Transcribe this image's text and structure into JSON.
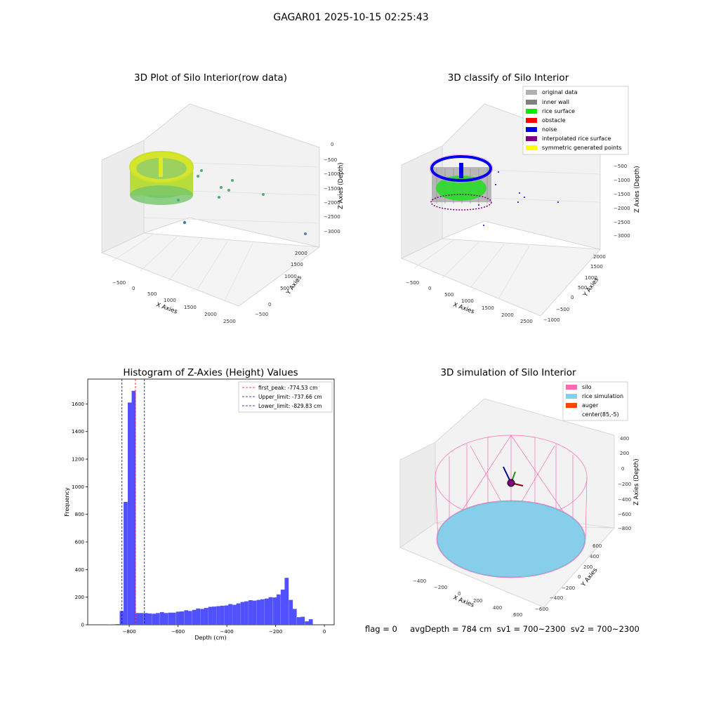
{
  "figure": {
    "suptitle": "GAGAR01 2025-10-15 02:25:43",
    "footer": "flag = 0     avgDepth = 784 cm  sv1 = 700~2300  sv2 = 700~2300"
  },
  "panels": {
    "raw": {
      "title": "3D Plot of Silo Interior(row data)",
      "xlabel": "X Axies",
      "ylabel": "Y Axies",
      "zlabel": "Z Axies (Depth)",
      "xticks": [
        "−500",
        "0",
        "500",
        "1000",
        "1500",
        "2000",
        "2500"
      ],
      "yticks": [
        "−500",
        "0",
        "500",
        "1000",
        "1500",
        "2000"
      ],
      "zticks": [
        "0",
        "−500",
        "−1000",
        "−1500",
        "−2000",
        "−2500",
        "−3000"
      ]
    },
    "classify": {
      "title": "3D classify of Silo Interior",
      "xlabel": "X Axies",
      "ylabel": "Y Axies",
      "zlabel": "Z Axies (Depth)",
      "xticks": [
        "−500",
        "0",
        "500",
        "1000",
        "1500",
        "2000",
        "2500"
      ],
      "yticks": [
        "−1000",
        "−500",
        "0",
        "500",
        "1000",
        "1500",
        "2000"
      ],
      "zticks": [
        "−500",
        "−1000",
        "−1500",
        "−2000",
        "−2500",
        "−3000"
      ],
      "legend": [
        {
          "label": "original data",
          "color": "#b0b0b0"
        },
        {
          "label": "inner wall",
          "color": "#808080"
        },
        {
          "label": "rice surface",
          "color": "#00ee00"
        },
        {
          "label": "obstacle",
          "color": "#ff0000"
        },
        {
          "label": "noise",
          "color": "#0000ee"
        },
        {
          "label": "interpolated rice surface",
          "color": "#800080"
        },
        {
          "label": "symmetric generated points",
          "color": "#ffff00"
        }
      ]
    },
    "simulation": {
      "title": "3D simulation of Silo Interior",
      "xlabel": "X Axies",
      "ylabel": "Y Axies",
      "zlabel": "Z Axies (Depth)",
      "xticks": [
        "−400",
        "−200",
        "0",
        "200",
        "400",
        "600"
      ],
      "yticks": [
        "−600",
        "−400",
        "−200",
        "0",
        "200",
        "400",
        "600"
      ],
      "zticks": [
        "400",
        "200",
        "0",
        "−200",
        "−400",
        "−600",
        "−800"
      ],
      "legend": [
        {
          "label": "silo",
          "color": "#ff69b4"
        },
        {
          "label": "rice simulation",
          "color": "#87ceeb"
        },
        {
          "label": "auger",
          "color": "#ff4500"
        },
        {
          "label": "center(85,-5)",
          "color": ""
        }
      ]
    }
  },
  "chart_data": {
    "type": "bar",
    "title": "Histogram of Z-Axies (Height) Values",
    "xlabel": "Depth (cm)",
    "ylabel": "Frequency",
    "xlim": [
      -970,
      40
    ],
    "ylim": [
      0,
      1780
    ],
    "xticks": [
      -800,
      -600,
      -400,
      -200,
      0
    ],
    "yticks": [
      0,
      200,
      400,
      600,
      800,
      1000,
      1200,
      1400,
      1600
    ],
    "bar_color": "#5050ff",
    "bin_width": 16.5,
    "bin_starts": [
      -888,
      -856,
      -839,
      -823,
      -806,
      -790,
      -773,
      -757,
      -740,
      -724,
      -707,
      -691,
      -674,
      -658,
      -641,
      -625,
      -608,
      -592,
      -575,
      -559,
      -542,
      -526,
      -509,
      -493,
      -476,
      -460,
      -443,
      -427,
      -410,
      -394,
      -377,
      -361,
      -344,
      -328,
      -311,
      -295,
      -278,
      -262,
      -245,
      -229,
      -212,
      -196,
      -179,
      -163,
      -146,
      -130,
      -113,
      -97,
      -80,
      -64,
      -47,
      -31,
      -14
    ],
    "values": [
      2,
      5,
      100,
      890,
      1610,
      1695,
      85,
      85,
      85,
      82,
      80,
      85,
      92,
      85,
      88,
      88,
      95,
      97,
      105,
      100,
      108,
      118,
      115,
      122,
      130,
      132,
      135,
      138,
      140,
      150,
      145,
      155,
      165,
      170,
      178,
      175,
      180,
      185,
      190,
      200,
      198,
      220,
      255,
      340,
      180,
      115,
      55,
      58,
      25,
      40,
      0,
      0,
      0
    ],
    "vlines": [
      {
        "label": "first_peak: -774.53 cm",
        "x": -774.53,
        "color": "#ff0000"
      },
      {
        "label": "Upper_limit: -737.66 cm",
        "x": -737.66,
        "color": "#0000aa"
      },
      {
        "label": "Lower_limit: -829.83 cm",
        "x": -829.83,
        "color": "#0000aa"
      }
    ]
  }
}
